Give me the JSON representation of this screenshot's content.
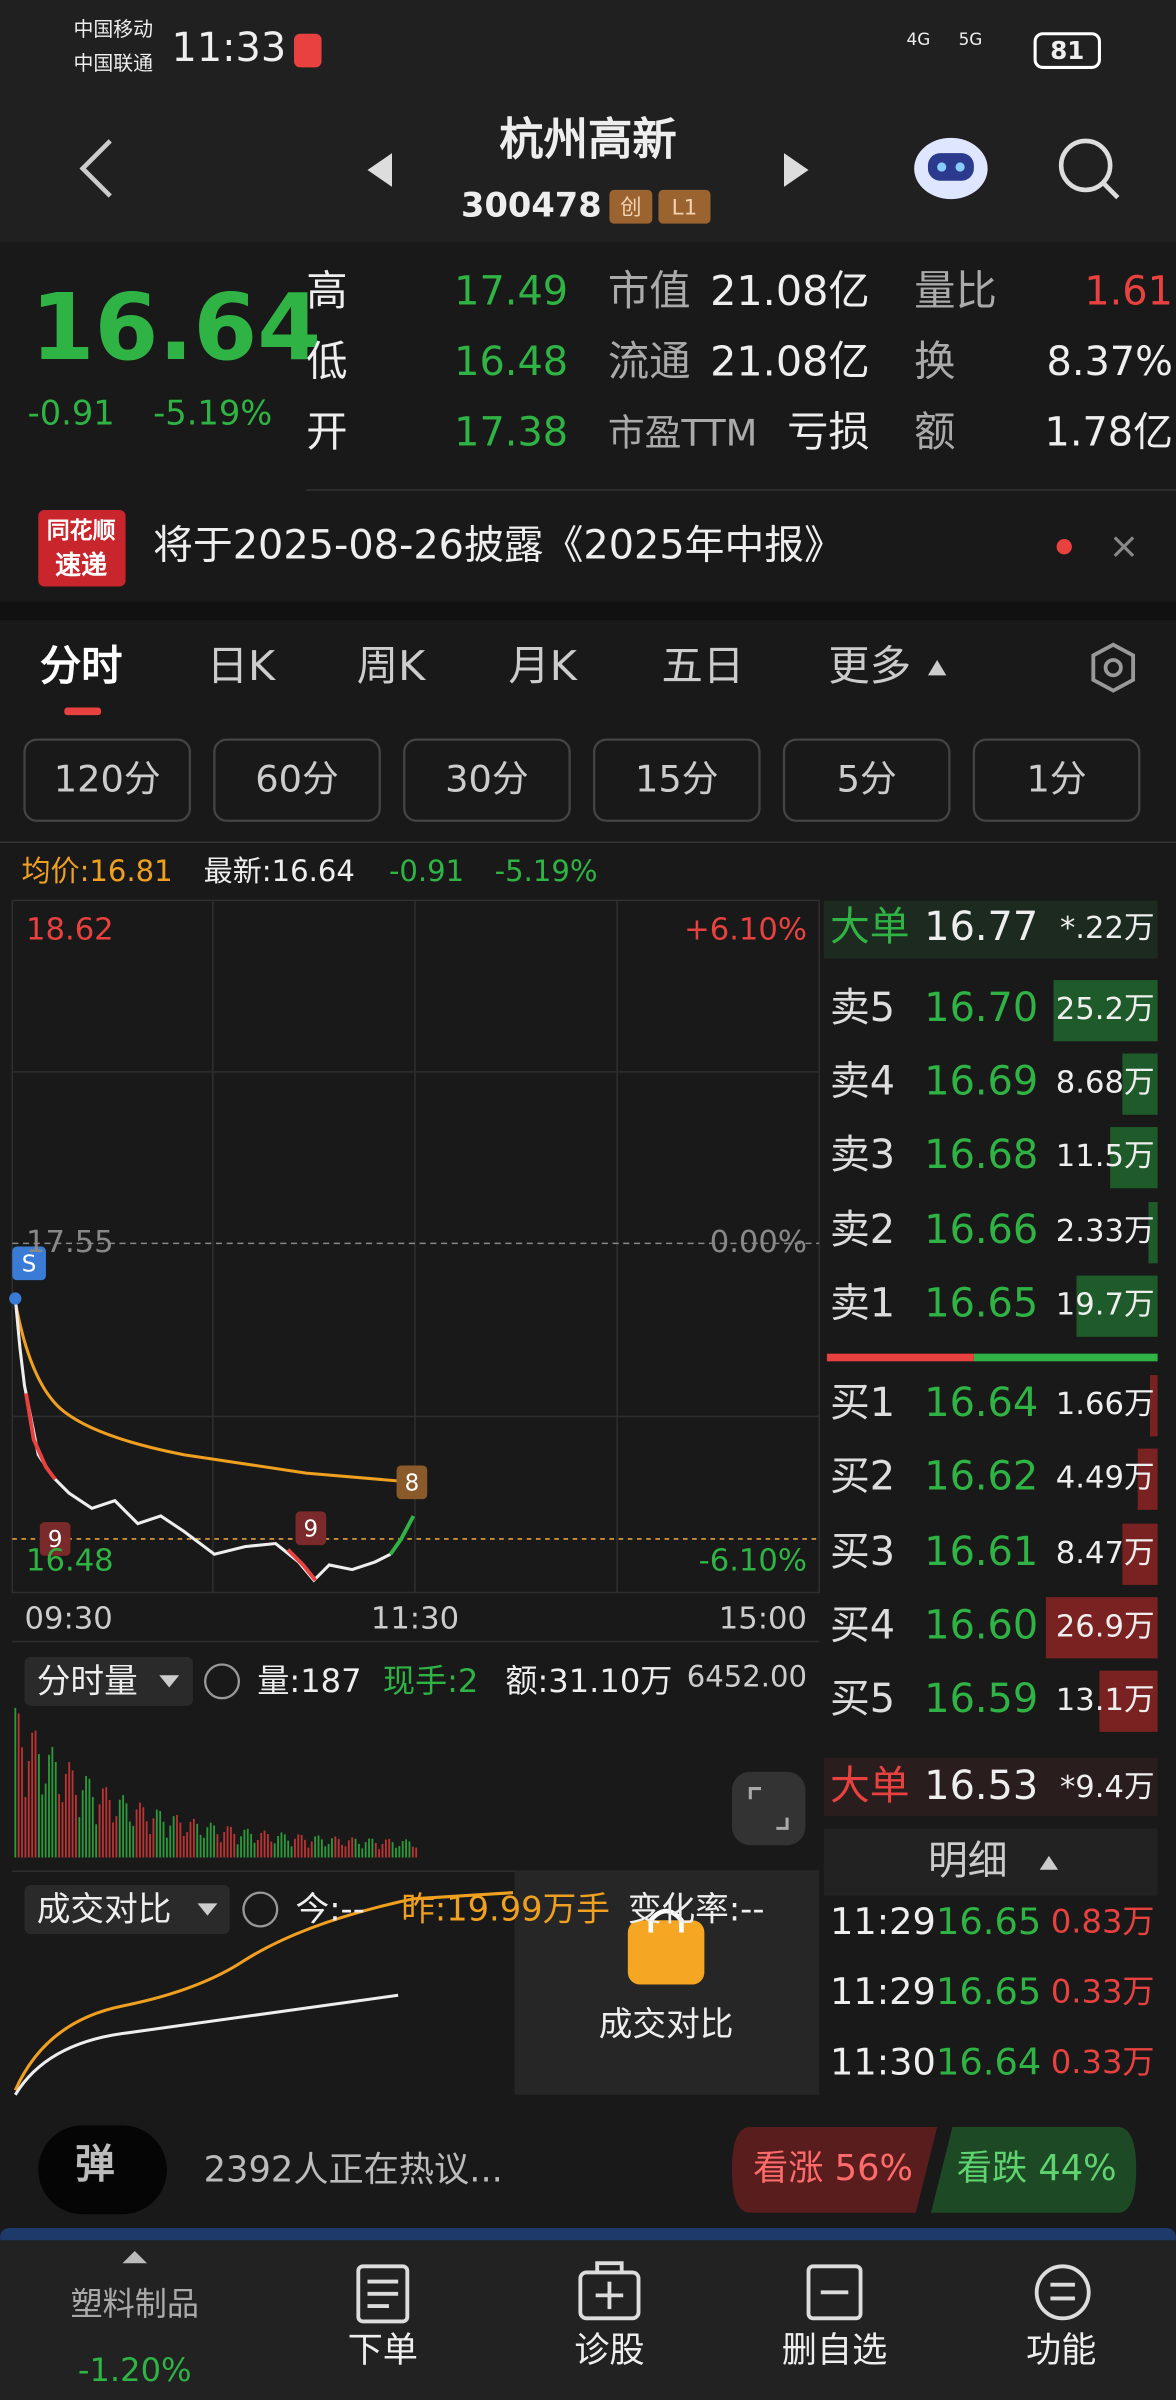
{
  "status": {
    "carrier1": "中国移动",
    "carrier2": "中国联通",
    "time": "11:33",
    "net1": "4G",
    "net2": "5G",
    "battery": "81"
  },
  "header": {
    "title": "杭州高新",
    "code": "300478",
    "badges": [
      "创",
      "L1"
    ]
  },
  "quote": {
    "price": "16.64",
    "change": "-0.91",
    "percent": "-5.19%",
    "left": [
      [
        "高",
        "17.49"
      ],
      [
        "低",
        "16.48"
      ],
      [
        "开",
        "17.38"
      ]
    ],
    "middle": [
      [
        "市值",
        "21.08亿"
      ],
      [
        "流通",
        "21.08亿"
      ],
      [
        "市盈TTM",
        "亏损"
      ]
    ],
    "right": [
      [
        "量比",
        "1.61"
      ],
      [
        "换",
        "8.37%"
      ],
      [
        "额",
        "1.78亿"
      ]
    ]
  },
  "notice": {
    "logo": [
      "同花顺",
      "速递"
    ],
    "text": "将于2025-08-26披露《2025年中报》"
  },
  "tabs": [
    "分时",
    "日K",
    "周K",
    "月K",
    "五日",
    "更多"
  ],
  "periods": [
    "120分",
    "60分",
    "30分",
    "15分",
    "5分",
    "1分"
  ],
  "info": {
    "average": "均价:16.81",
    "latest": "最新:16.64",
    "change": "-0.91",
    "percent": "-5.19%"
  },
  "chart": {
    "high": "18.62",
    "high_pct": "+6.10%",
    "base": "17.55",
    "base_pct": "0.00%",
    "low": "16.48",
    "low_pct": "-6.10%",
    "times": [
      "09:30",
      "11:30",
      "15:00"
    ],
    "markers": [
      "S",
      "9",
      "9",
      "8"
    ]
  },
  "volume": {
    "label": "分时量",
    "amount": "量:187",
    "hand": "现手:2",
    "turnover": "额:31.10万",
    "max": "6452.00"
  },
  "compare": {
    "label": "成交对比",
    "today": "今:--",
    "yesterday": "昨:19.99万手",
    "rate": "变化率:--",
    "locked": "成交对比"
  },
  "orderbook": {
    "big_top": [
      "大单",
      "16.77",
      "*.22万"
    ],
    "asks": [
      [
        "卖5",
        "16.70",
        "25.2万"
      ],
      [
        "卖4",
        "16.69",
        "8.68万"
      ],
      [
        "卖3",
        "16.68",
        "11.5万"
      ],
      [
        "卖2",
        "16.66",
        "2.33万"
      ],
      [
        "卖1",
        "16.65",
        "19.7万"
      ]
    ],
    "bids": [
      [
        "买1",
        "16.64",
        "1.66万"
      ],
      [
        "买2",
        "16.62",
        "4.49万"
      ],
      [
        "买3",
        "16.61",
        "8.47万"
      ],
      [
        "买4",
        "16.60",
        "26.9万"
      ],
      [
        "买5",
        "16.59",
        "13.1万"
      ]
    ],
    "big_bottom": [
      "大单",
      "16.53",
      "*9.4万"
    ],
    "detail_title": "明细",
    "trades": [
      [
        "11:29",
        "16.65",
        "0.83万"
      ],
      [
        "11:29",
        "16.65",
        "0.33万"
      ],
      [
        "11:30",
        "16.64",
        "0.33万"
      ]
    ]
  },
  "social": {
    "badge": "弹",
    "text": "2392人正在热议...",
    "bull": "看涨 56%",
    "bear": "看跌 44%"
  },
  "nav": {
    "sector": "塑料制品",
    "sector_change": "-1.20%",
    "items": [
      "下单",
      "诊股",
      "删自选",
      "功能"
    ]
  }
}
